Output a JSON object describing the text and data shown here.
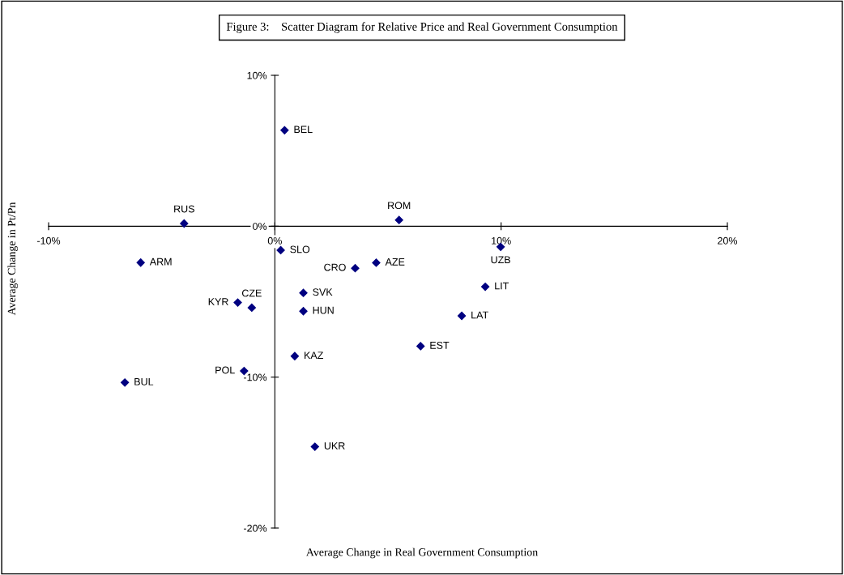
{
  "chart_data": {
    "type": "scatter",
    "title": "Figure 3:    Scatter Diagram for Relative Price and Real Government Consumption",
    "xlabel": "Average Change in Real Government Consumption",
    "ylabel": "Average Change in Pt/Pn",
    "x": [
      0.43,
      -4.01,
      5.49,
      -5.93,
      0.26,
      9.98,
      4.48,
      3.55,
      9.3,
      8.26,
      6.44,
      1.26,
      -1.64,
      -1.02,
      1.26,
      0.88,
      -1.36,
      -6.63,
      1.77
    ],
    "series": [
      {
        "color": "#000080",
        "values": [
          6.36,
          0.18,
          0.41,
          -2.41,
          -1.59,
          -1.37,
          -2.42,
          -2.78,
          -4.01,
          -5.94,
          -7.95,
          -4.42,
          -5.06,
          -5.4,
          -5.63,
          -8.61,
          -9.59,
          -10.36,
          -14.61
        ]
      }
    ],
    "annotations": [
      {
        "text": "BEL",
        "x": 0.43,
        "y": 6.36
      },
      {
        "text": "RUS",
        "x": -4.01,
        "y": 0.18
      },
      {
        "text": "ROM",
        "x": 5.49,
        "y": 0.41
      },
      {
        "text": "ARM",
        "x": -5.93,
        "y": -2.41
      },
      {
        "text": "SLO",
        "x": 0.26,
        "y": -1.59
      },
      {
        "text": "UZB",
        "x": 9.98,
        "y": -1.37
      },
      {
        "text": "AZE",
        "x": 4.48,
        "y": -2.42
      },
      {
        "text": "CRO",
        "x": 3.55,
        "y": -2.78
      },
      {
        "text": "LIT",
        "x": 9.3,
        "y": -4.01
      },
      {
        "text": "LAT",
        "x": 8.26,
        "y": -5.94
      },
      {
        "text": "EST",
        "x": 6.44,
        "y": -7.95
      },
      {
        "text": "SVK",
        "x": 1.26,
        "y": -4.42
      },
      {
        "text": "KYR",
        "x": -1.64,
        "y": -5.06
      },
      {
        "text": "CZE",
        "x": -1.02,
        "y": -5.4
      },
      {
        "text": "HUN",
        "x": 1.26,
        "y": -5.63
      },
      {
        "text": "KAZ",
        "x": 0.88,
        "y": -8.61
      },
      {
        "text": "POL",
        "x": -1.36,
        "y": -9.59
      },
      {
        "text": "BUL",
        "x": -6.63,
        "y": -10.36
      },
      {
        "text": "UKR",
        "x": 1.77,
        "y": -14.61
      }
    ],
    "xlim": [
      -10,
      20
    ],
    "ylim": [
      -20,
      10
    ],
    "xticks": [
      {
        "value": -10,
        "label": "-10%"
      },
      {
        "value": 0,
        "label": "0%"
      },
      {
        "value": 10,
        "label": "10%"
      },
      {
        "value": 20,
        "label": "20%"
      }
    ],
    "yticks": [
      {
        "value": -20,
        "label": "-20%"
      },
      {
        "value": -10,
        "label": "-10%"
      },
      {
        "value": 0,
        "label": "0%"
      },
      {
        "value": 10,
        "label": "10%"
      }
    ],
    "marker": "diamond",
    "grid": false,
    "legend": false
  }
}
